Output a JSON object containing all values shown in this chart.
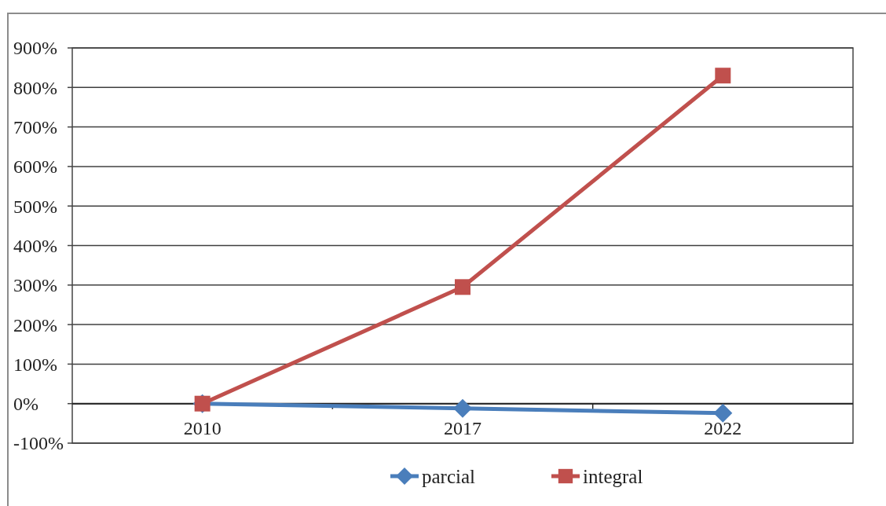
{
  "chart_data": {
    "type": "line",
    "categories": [
      "2010",
      "2017",
      "2022"
    ],
    "series": [
      {
        "name": "parcial",
        "color": "#4a7ebb",
        "marker": "diamond",
        "values": [
          0,
          -12,
          -24
        ]
      },
      {
        "name": "integral",
        "color": "#c0504d",
        "marker": "square",
        "values": [
          0,
          295,
          830
        ]
      }
    ],
    "ylim": [
      -100,
      900
    ],
    "yticks": [
      {
        "value": -100,
        "label": "-100%"
      },
      {
        "value": 0,
        "label": "0%"
      },
      {
        "value": 100,
        "label": "100%"
      },
      {
        "value": 200,
        "label": "200%"
      },
      {
        "value": 300,
        "label": "300%"
      },
      {
        "value": 400,
        "label": "400%"
      },
      {
        "value": 500,
        "label": "500%"
      },
      {
        "value": 600,
        "label": "600%"
      },
      {
        "value": 700,
        "label": "700%"
      },
      {
        "value": 800,
        "label": "800%"
      },
      {
        "value": 900,
        "label": "900%"
      }
    ],
    "grid": "y",
    "legend": "bottom"
  }
}
